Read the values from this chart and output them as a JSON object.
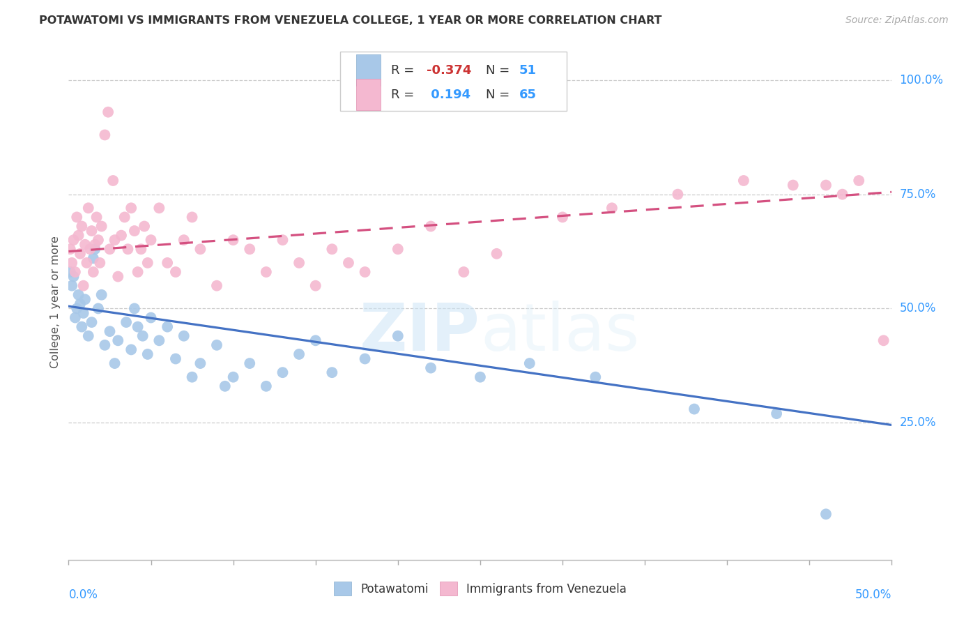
{
  "title": "POTAWATOMI VS IMMIGRANTS FROM VENEZUELA COLLEGE, 1 YEAR OR MORE CORRELATION CHART",
  "source": "Source: ZipAtlas.com",
  "ylabel": "College, 1 year or more",
  "yaxis_labels": [
    "100.0%",
    "75.0%",
    "50.0%",
    "25.0%"
  ],
  "yaxis_values": [
    1.0,
    0.75,
    0.5,
    0.25
  ],
  "xaxis_left_label": "0.0%",
  "xaxis_right_label": "50.0%",
  "xlim": [
    0.0,
    0.5
  ],
  "ylim": [
    -0.05,
    1.08
  ],
  "blue_scatter_color": "#a8c8e8",
  "pink_scatter_color": "#f4b8d0",
  "blue_line_color": "#4472c4",
  "pink_line_color": "#d45080",
  "blue_r": "-0.374",
  "blue_n": "51",
  "pink_r": "0.194",
  "pink_n": "65",
  "blue_trend_x0": 0.0,
  "blue_trend_x1": 0.5,
  "blue_trend_y0": 0.505,
  "blue_trend_y1": 0.245,
  "pink_trend_x0": 0.0,
  "pink_trend_x1": 0.5,
  "pink_trend_y0": 0.625,
  "pink_trend_y1": 0.755,
  "blue_x": [
    0.001,
    0.002,
    0.003,
    0.004,
    0.005,
    0.006,
    0.007,
    0.008,
    0.009,
    0.01,
    0.012,
    0.014,
    0.015,
    0.016,
    0.018,
    0.02,
    0.022,
    0.025,
    0.028,
    0.03,
    0.035,
    0.038,
    0.04,
    0.042,
    0.045,
    0.048,
    0.05,
    0.055,
    0.06,
    0.065,
    0.07,
    0.075,
    0.08,
    0.09,
    0.095,
    0.1,
    0.11,
    0.12,
    0.13,
    0.14,
    0.15,
    0.16,
    0.18,
    0.2,
    0.22,
    0.25,
    0.28,
    0.32,
    0.38,
    0.43,
    0.46
  ],
  "blue_y": [
    0.58,
    0.55,
    0.57,
    0.48,
    0.5,
    0.53,
    0.51,
    0.46,
    0.49,
    0.52,
    0.44,
    0.47,
    0.61,
    0.63,
    0.5,
    0.53,
    0.42,
    0.45,
    0.38,
    0.43,
    0.47,
    0.41,
    0.5,
    0.46,
    0.44,
    0.4,
    0.48,
    0.43,
    0.46,
    0.39,
    0.44,
    0.35,
    0.38,
    0.42,
    0.33,
    0.35,
    0.38,
    0.33,
    0.36,
    0.4,
    0.43,
    0.36,
    0.39,
    0.44,
    0.37,
    0.35,
    0.38,
    0.35,
    0.28,
    0.27,
    0.05
  ],
  "pink_x": [
    0.001,
    0.002,
    0.003,
    0.004,
    0.005,
    0.006,
    0.007,
    0.008,
    0.009,
    0.01,
    0.011,
    0.012,
    0.013,
    0.014,
    0.015,
    0.016,
    0.017,
    0.018,
    0.019,
    0.02,
    0.022,
    0.024,
    0.025,
    0.027,
    0.028,
    0.03,
    0.032,
    0.034,
    0.036,
    0.038,
    0.04,
    0.042,
    0.044,
    0.046,
    0.048,
    0.05,
    0.055,
    0.06,
    0.065,
    0.07,
    0.075,
    0.08,
    0.09,
    0.1,
    0.11,
    0.12,
    0.13,
    0.14,
    0.15,
    0.16,
    0.17,
    0.18,
    0.2,
    0.22,
    0.24,
    0.26,
    0.3,
    0.33,
    0.37,
    0.41,
    0.44,
    0.46,
    0.47,
    0.48,
    0.495
  ],
  "pink_y": [
    0.63,
    0.6,
    0.65,
    0.58,
    0.7,
    0.66,
    0.62,
    0.68,
    0.55,
    0.64,
    0.6,
    0.72,
    0.63,
    0.67,
    0.58,
    0.64,
    0.7,
    0.65,
    0.6,
    0.68,
    0.88,
    0.93,
    0.63,
    0.78,
    0.65,
    0.57,
    0.66,
    0.7,
    0.63,
    0.72,
    0.67,
    0.58,
    0.63,
    0.68,
    0.6,
    0.65,
    0.72,
    0.6,
    0.58,
    0.65,
    0.7,
    0.63,
    0.55,
    0.65,
    0.63,
    0.58,
    0.65,
    0.6,
    0.55,
    0.63,
    0.6,
    0.58,
    0.63,
    0.68,
    0.58,
    0.62,
    0.7,
    0.72,
    0.75,
    0.78,
    0.77,
    0.77,
    0.75,
    0.78,
    0.43
  ]
}
